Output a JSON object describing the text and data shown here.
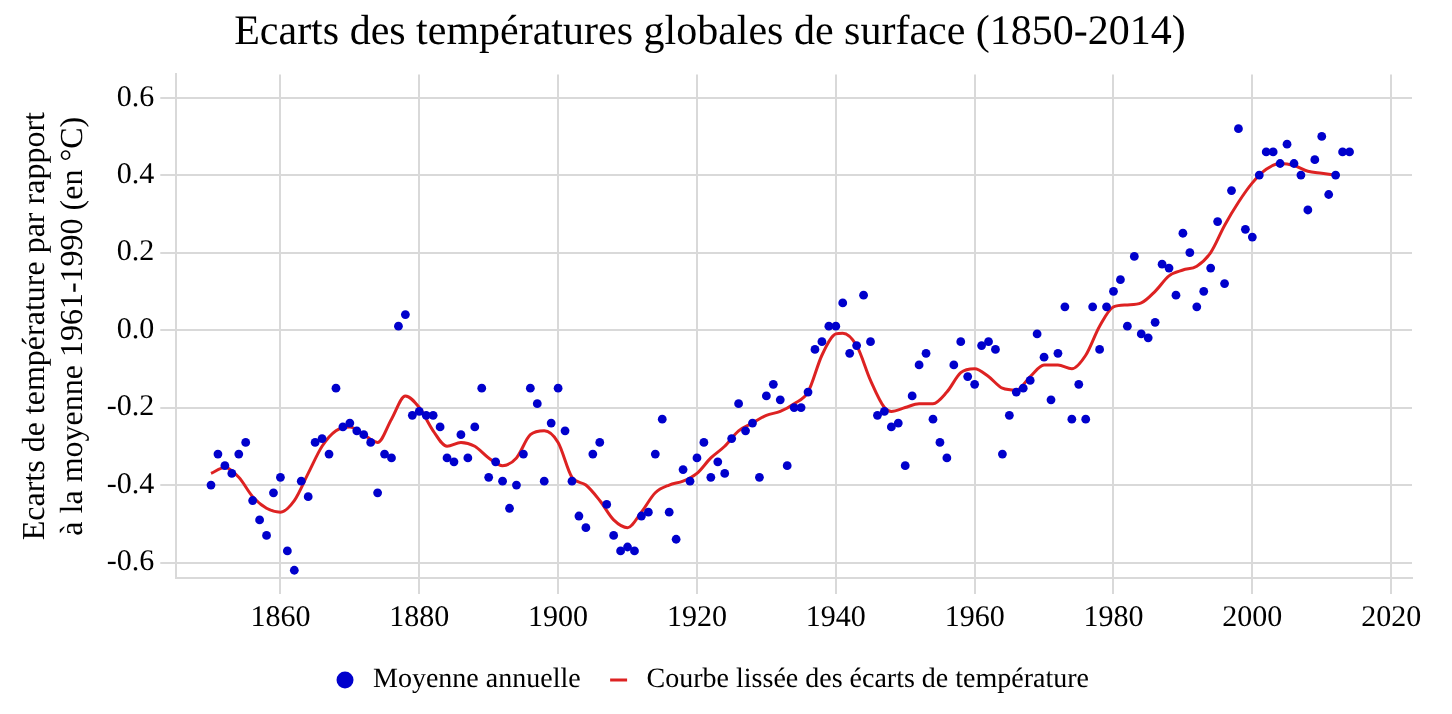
{
  "chart_data": {
    "type": "scatter",
    "title": "Ecarts des températures globales de surface (1850-2014)",
    "ylabel": "Ecarts de température par rapport\nà la moyenne 1961-1990 (en °C)",
    "xlim": [
      1845,
      2023
    ],
    "xticks": [
      1860,
      1880,
      1900,
      1920,
      1940,
      1960,
      1980,
      2000,
      2020
    ],
    "ylim": [
      -0.64,
      0.66
    ],
    "yticks": [
      -0.6,
      -0.4,
      -0.2,
      {
        "value": 0,
        "label": "0.0"
      },
      0.2,
      0.4,
      0.6
    ],
    "grid": true,
    "legend": "bottom",
    "marker": "circle",
    "series": [
      {
        "name": "Moyenne annuelle",
        "color": "#0000cc",
        "x": [
          1850,
          1851,
          1852,
          1853,
          1854,
          1855,
          1856,
          1857,
          1858,
          1859,
          1860,
          1861,
          1862,
          1863,
          1864,
          1865,
          1866,
          1867,
          1868,
          1869,
          1870,
          1871,
          1872,
          1873,
          1874,
          1875,
          1876,
          1877,
          1878,
          1879,
          1880,
          1881,
          1882,
          1883,
          1884,
          1885,
          1886,
          1887,
          1888,
          1889,
          1890,
          1891,
          1892,
          1893,
          1894,
          1895,
          1896,
          1897,
          1898,
          1899,
          1900,
          1901,
          1902,
          1903,
          1904,
          1905,
          1906,
          1907,
          1908,
          1909,
          1910,
          1911,
          1912,
          1913,
          1914,
          1915,
          1916,
          1917,
          1918,
          1919,
          1920,
          1921,
          1922,
          1923,
          1924,
          1925,
          1926,
          1927,
          1928,
          1929,
          1930,
          1931,
          1932,
          1933,
          1934,
          1935,
          1936,
          1937,
          1938,
          1939,
          1940,
          1941,
          1942,
          1943,
          1944,
          1945,
          1946,
          1947,
          1948,
          1949,
          1950,
          1951,
          1952,
          1953,
          1954,
          1955,
          1956,
          1957,
          1958,
          1959,
          1960,
          1961,
          1962,
          1963,
          1964,
          1965,
          1966,
          1967,
          1968,
          1969,
          1970,
          1971,
          1972,
          1973,
          1974,
          1975,
          1976,
          1977,
          1978,
          1979,
          1980,
          1981,
          1982,
          1983,
          1984,
          1985,
          1986,
          1987,
          1988,
          1989,
          1990,
          1991,
          1992,
          1993,
          1994,
          1995,
          1996,
          1997,
          1998,
          1999,
          2000,
          2001,
          2002,
          2003,
          2004,
          2005,
          2006,
          2007,
          2008,
          2009,
          2010,
          2011,
          2012,
          2013,
          2014
        ],
        "values": [
          -0.4,
          -0.32,
          -0.35,
          -0.37,
          -0.32,
          -0.29,
          -0.44,
          -0.49,
          -0.53,
          -0.42,
          -0.38,
          -0.57,
          -0.62,
          -0.39,
          -0.43,
          -0.29,
          -0.28,
          -0.32,
          -0.15,
          -0.25,
          -0.24,
          -0.26,
          -0.27,
          -0.29,
          -0.42,
          -0.32,
          -0.33,
          0.01,
          0.04,
          -0.22,
          -0.21,
          -0.22,
          -0.22,
          -0.25,
          -0.33,
          -0.34,
          -0.27,
          -0.33,
          -0.25,
          -0.15,
          -0.38,
          -0.34,
          -0.39,
          -0.46,
          -0.4,
          -0.32,
          -0.15,
          -0.19,
          -0.39,
          -0.24,
          -0.15,
          -0.26,
          -0.39,
          -0.48,
          -0.51,
          -0.32,
          -0.29,
          -0.45,
          -0.53,
          -0.57,
          -0.56,
          -0.57,
          -0.48,
          -0.47,
          -0.32,
          -0.23,
          -0.47,
          -0.54,
          -0.36,
          -0.39,
          -0.33,
          -0.29,
          -0.38,
          -0.34,
          -0.37,
          -0.28,
          -0.19,
          -0.26,
          -0.24,
          -0.38,
          -0.17,
          -0.14,
          -0.18,
          -0.35,
          -0.2,
          -0.2,
          -0.16,
          -0.05,
          -0.03,
          0.01,
          0.01,
          0.07,
          -0.06,
          -0.04,
          0.09,
          -0.03,
          -0.22,
          -0.21,
          -0.25,
          -0.24,
          -0.35,
          -0.17,
          -0.09,
          -0.06,
          -0.23,
          -0.29,
          -0.33,
          -0.09,
          -0.03,
          -0.12,
          -0.14,
          -0.04,
          -0.03,
          -0.05,
          -0.32,
          -0.22,
          -0.16,
          -0.15,
          -0.13,
          -0.01,
          -0.07,
          -0.18,
          -0.06,
          0.06,
          -0.23,
          -0.14,
          -0.23,
          0.06,
          -0.05,
          0.06,
          0.1,
          0.13,
          0.01,
          0.19,
          -0.01,
          -0.02,
          0.02,
          0.17,
          0.16,
          0.09,
          0.25,
          0.2,
          0.06,
          0.1,
          0.16,
          0.28,
          0.12,
          0.36,
          0.52,
          0.26,
          0.24,
          0.4,
          0.46,
          0.46,
          0.43,
          0.48,
          0.43,
          0.4,
          0.31,
          0.44,
          0.5,
          0.35,
          0.4,
          0.46,
          0.46
        ]
      },
      {
        "name": "Courbe lissée des écarts de température",
        "type": "line",
        "color": "#dd2222",
        "marker": "none",
        "x": [
          1850,
          1852,
          1854,
          1856,
          1858,
          1860,
          1862,
          1864,
          1866,
          1868,
          1870,
          1872,
          1874,
          1876,
          1878,
          1880,
          1882,
          1884,
          1886,
          1888,
          1890,
          1892,
          1894,
          1896,
          1898,
          1900,
          1902,
          1904,
          1906,
          1908,
          1910,
          1912,
          1914,
          1916,
          1918,
          1920,
          1922,
          1924,
          1926,
          1928,
          1930,
          1932,
          1934,
          1936,
          1938,
          1940,
          1941,
          1943,
          1945,
          1947,
          1948,
          1950,
          1952,
          1954,
          1956,
          1958,
          1960,
          1962,
          1964,
          1966,
          1968,
          1970,
          1972,
          1974,
          1976,
          1978,
          1980,
          1982,
          1984,
          1986,
          1988,
          1990,
          1992,
          1994,
          1996,
          1998,
          2000,
          2002,
          2004,
          2006,
          2008,
          2010,
          2012
        ],
        "values": [
          -0.37,
          -0.355,
          -0.38,
          -0.43,
          -0.46,
          -0.47,
          -0.44,
          -0.37,
          -0.3,
          -0.26,
          -0.25,
          -0.27,
          -0.29,
          -0.23,
          -0.17,
          -0.2,
          -0.26,
          -0.3,
          -0.29,
          -0.3,
          -0.33,
          -0.35,
          -0.33,
          -0.27,
          -0.26,
          -0.29,
          -0.38,
          -0.4,
          -0.44,
          -0.49,
          -0.51,
          -0.47,
          -0.42,
          -0.4,
          -0.39,
          -0.37,
          -0.33,
          -0.3,
          -0.26,
          -0.24,
          -0.22,
          -0.21,
          -0.19,
          -0.16,
          -0.065,
          -0.01,
          -0.008,
          -0.04,
          -0.13,
          -0.2,
          -0.21,
          -0.2,
          -0.19,
          -0.19,
          -0.16,
          -0.11,
          -0.1,
          -0.12,
          -0.15,
          -0.155,
          -0.12,
          -0.09,
          -0.09,
          -0.1,
          -0.065,
          0.01,
          0.06,
          0.065,
          0.07,
          0.1,
          0.14,
          0.155,
          0.165,
          0.2,
          0.27,
          0.33,
          0.38,
          0.415,
          0.43,
          0.425,
          0.41,
          0.405,
          0.4
        ]
      }
    ]
  }
}
